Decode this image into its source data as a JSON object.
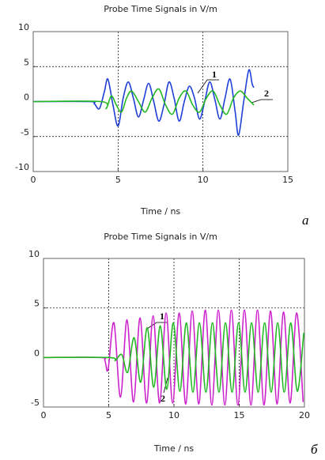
{
  "chart_data": [
    {
      "type": "line",
      "title": "Probe Time Signals in V/m",
      "xlabel": "Time / ns",
      "panel_label": "a",
      "xlim": [
        0,
        15
      ],
      "xticks": [
        0,
        5,
        10,
        15
      ],
      "ylim": [
        -10,
        10
      ],
      "yticks": [
        -10,
        -5,
        0,
        5,
        10
      ],
      "grid": true,
      "series": [
        {
          "name": "1",
          "color": "#1f3fd8",
          "x": [
            0,
            3.3,
            3.6,
            3.9,
            4.2,
            4.4,
            4.7,
            5.0,
            5.3,
            5.6,
            5.9,
            6.2,
            6.5,
            6.8,
            7.1,
            7.4,
            7.7,
            8.0,
            8.3,
            8.6,
            8.9,
            9.2,
            9.5,
            9.8,
            10.1,
            10.4,
            10.7,
            11.0,
            11.3,
            11.6,
            11.9,
            12.1,
            12.4,
            12.7,
            12.9,
            13.0
          ],
          "values": [
            0,
            0,
            -0.3,
            -1.0,
            1.5,
            3.2,
            -0.5,
            -3.5,
            0.5,
            2.8,
            0.5,
            -2.2,
            0.2,
            2.6,
            0,
            -2.8,
            -0.5,
            2.8,
            0.5,
            -2.8,
            0,
            2.2,
            0.5,
            -2.5,
            0,
            2.8,
            0.3,
            -2.5,
            0.5,
            3.2,
            -1.5,
            -4.8,
            0,
            4.5,
            2.5,
            2.0
          ]
        },
        {
          "name": "2",
          "color": "#22b822",
          "x": [
            0,
            4.0,
            4.3,
            4.6,
            4.9,
            5.2,
            5.5,
            5.8,
            6.2,
            6.6,
            7.0,
            7.4,
            7.8,
            8.2,
            8.6,
            9.0,
            9.4,
            9.8,
            10.2,
            10.6,
            11.0,
            11.4,
            11.8,
            12.2,
            12.6,
            13.0
          ],
          "values": [
            0,
            0,
            -1.0,
            0.8,
            -0.5,
            -1.5,
            0.5,
            1.5,
            0,
            -1.5,
            0.5,
            1.8,
            -0.5,
            -1.8,
            0.5,
            1.5,
            -0.5,
            -1.5,
            0.5,
            1.5,
            -0.5,
            -1.8,
            0.5,
            1.5,
            0.5,
            -0.5
          ]
        }
      ]
    },
    {
      "type": "line",
      "title": "Probe Time Signals in V/m",
      "xlabel": "Time / ns",
      "panel_label": "б",
      "xlim": [
        0,
        20
      ],
      "xticks": [
        0,
        5,
        10,
        15,
        20
      ],
      "ylim": [
        -5,
        10
      ],
      "yticks": [
        -5,
        0,
        5,
        10
      ],
      "grid": true,
      "series": [
        {
          "name": "1",
          "color": "#cc22cc",
          "x": [
            0,
            4.3,
            4.7,
            4.95,
            5.4,
            5.9,
            6.4,
            6.9,
            7.4,
            7.9,
            8.4,
            8.9,
            9.4,
            9.9,
            10.4,
            10.9,
            11.4,
            11.9,
            12.4,
            12.9,
            13.4,
            13.9,
            14.4,
            14.9,
            15.4,
            15.9,
            16.4,
            16.9,
            17.4,
            17.9,
            18.4,
            18.9,
            19.4,
            19.9
          ],
          "values": [
            0,
            0,
            -0.3,
            -1.2,
            3.5,
            -4.0,
            3.8,
            -4.5,
            4.0,
            -4.6,
            4.2,
            -4.6,
            4.5,
            -4.6,
            4.5,
            -4.7,
            4.7,
            -4.7,
            4.8,
            -4.8,
            4.8,
            -4.8,
            4.8,
            -4.8,
            4.8,
            -4.8,
            4.8,
            -4.8,
            4.7,
            -4.7,
            4.6,
            -4.6,
            4.5,
            -4.5
          ]
        },
        {
          "name": "2",
          "color": "#22b822",
          "x": [
            0,
            5.0,
            5.5,
            6.0,
            6.45,
            6.95,
            7.45,
            7.95,
            8.45,
            8.95,
            9.45,
            9.95,
            10.45,
            10.95,
            11.45,
            11.95,
            12.45,
            12.95,
            13.45,
            13.95,
            14.45,
            14.95,
            15.45,
            15.95,
            16.45,
            16.95,
            17.45,
            17.95,
            18.45,
            18.95,
            19.45,
            19.95
          ],
          "values": [
            0,
            0,
            -0.3,
            0.3,
            -1.5,
            2.0,
            -2.5,
            3.0,
            -3.0,
            3.2,
            -3.2,
            3.5,
            -3.4,
            3.5,
            -3.5,
            3.5,
            -3.5,
            3.5,
            -3.5,
            3.5,
            -3.5,
            3.5,
            -3.5,
            3.5,
            -3.5,
            3.5,
            -3.5,
            3.5,
            -3.5,
            3.5,
            -3.4,
            2.5
          ]
        }
      ]
    }
  ]
}
